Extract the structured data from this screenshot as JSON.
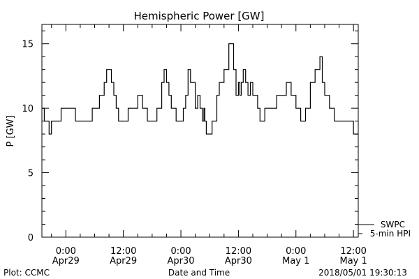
{
  "chart_data": {
    "type": "line",
    "title": "Hemispheric Power [GW]",
    "xlabel": "Date and Time",
    "ylabel": "P [GW]",
    "ylim": [
      0,
      16.5
    ],
    "x_unit": "hours",
    "x_range": [
      -5,
      61
    ],
    "y_ticks": [
      0,
      5,
      10,
      15
    ],
    "x_ticks": [
      {
        "x": 0,
        "time": "0:00",
        "date": "Apr29"
      },
      {
        "x": 12,
        "time": "12:00",
        "date": "Apr29"
      },
      {
        "x": 24,
        "time": "0:00",
        "date": "Apr30"
      },
      {
        "x": 36,
        "time": "12:00",
        "date": "Apr30"
      },
      {
        "x": 48,
        "time": "0:00",
        "date": "May 1"
      },
      {
        "x": 60,
        "time": "12:00",
        "date": "May 1"
      }
    ],
    "legend_placement": "bottom-right",
    "grid": false,
    "series": [
      {
        "name": "SWPC",
        "style": "step",
        "x": [
          -5,
          -4.5,
          -4,
          -3.5,
          -3,
          -2,
          -1,
          -0.5,
          2,
          5,
          5.5,
          6.5,
          7,
          8,
          8.5,
          9,
          9.5,
          10,
          10.5,
          11,
          12,
          13,
          14,
          15,
          15.5,
          16,
          17,
          18,
          19,
          20,
          20.5,
          21,
          21.5,
          22,
          23,
          24,
          24.5,
          25,
          25.5,
          26,
          27,
          27.5,
          28,
          28.5,
          28.8,
          29,
          29.3,
          29.5,
          30,
          30.5,
          31,
          31.5,
          32,
          33,
          34,
          35,
          35.5,
          36,
          36.3,
          36.6,
          37,
          37.5,
          38,
          38.5,
          39,
          40,
          40.5,
          41,
          41.5,
          42,
          43,
          44,
          46,
          47,
          48,
          49,
          50,
          51,
          52,
          53,
          53.5,
          54,
          55,
          56,
          56.5,
          57,
          57.5,
          58,
          58.5,
          59,
          60,
          61
        ],
        "values": [
          10,
          9,
          9,
          8,
          9,
          9,
          10,
          10,
          9,
          9,
          10,
          10,
          11,
          12,
          13,
          13,
          12,
          11,
          10,
          9,
          9,
          10,
          10,
          11,
          11,
          10,
          9,
          9,
          10,
          12,
          13,
          12,
          11,
          10,
          9,
          9,
          10,
          11,
          13,
          12,
          10,
          11,
          10,
          9,
          10,
          9,
          8,
          8,
          8,
          9,
          9,
          11,
          12,
          13,
          15,
          13,
          11,
          12,
          11,
          12,
          13,
          12,
          11,
          12,
          11,
          10,
          9,
          9,
          10,
          10,
          10,
          11,
          12,
          11,
          10,
          9,
          10,
          12,
          13,
          14,
          12,
          11,
          10,
          9,
          9,
          9,
          9,
          9,
          9,
          9,
          8,
          8
        ]
      },
      {
        "name": "5-min HPI",
        "style": "line",
        "values": []
      }
    ]
  },
  "footer": {
    "left": "Plot: CCMC",
    "center": "Date and Time",
    "right": "2018/05/01 19:30:13"
  }
}
